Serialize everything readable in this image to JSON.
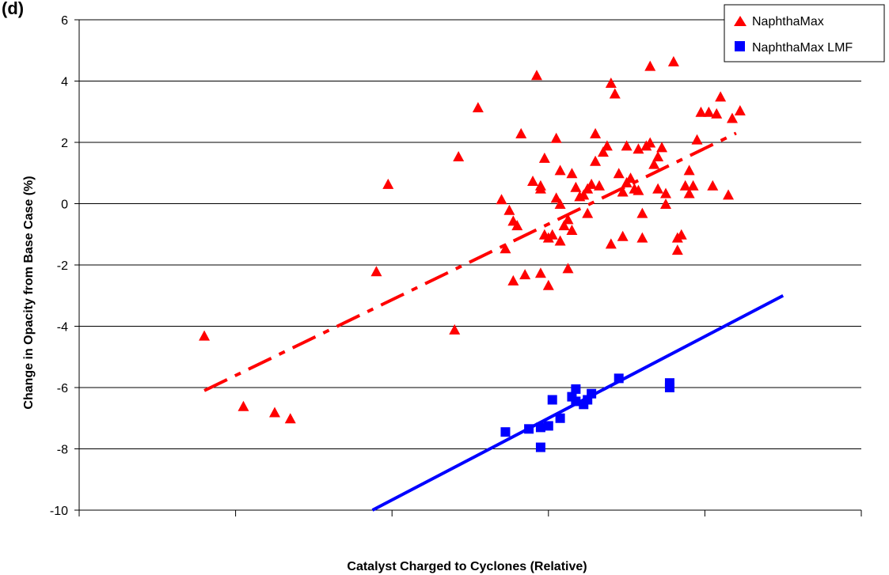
{
  "figure_label": "(d) ",
  "chart_data": {
    "type": "scatter",
    "title": "",
    "xlabel": "Catalyst Charged to Cyclones (Relative)",
    "ylabel": "Change in Opacity from Base Case (%)",
    "xlim": [
      0,
      10
    ],
    "ylim": [
      -10,
      6
    ],
    "yticks": [
      -10,
      -8,
      -6,
      -4,
      -2,
      0,
      2,
      4,
      6
    ],
    "xticks": [
      0,
      2,
      4,
      6,
      8,
      10
    ],
    "grid": "horizontal",
    "legend": "top-right",
    "colors": {
      "naphthamax": "#ff0000",
      "naphthamax_lmf": "#0000ff"
    },
    "series": [
      {
        "name": "NaphthaMax",
        "marker": "triangle",
        "color": "#ff0000",
        "points": [
          [
            1.6,
            -4.3
          ],
          [
            2.1,
            -6.6
          ],
          [
            2.5,
            -6.8
          ],
          [
            2.7,
            -7.0
          ],
          [
            3.8,
            -2.2
          ],
          [
            3.95,
            0.65
          ],
          [
            4.8,
            -4.1
          ],
          [
            4.85,
            1.55
          ],
          [
            5.1,
            3.15
          ],
          [
            5.4,
            0.15
          ],
          [
            5.45,
            -1.45
          ],
          [
            5.5,
            -0.2
          ],
          [
            5.55,
            -0.55
          ],
          [
            5.55,
            -2.5
          ],
          [
            5.6,
            -0.7
          ],
          [
            5.65,
            2.3
          ],
          [
            5.7,
            -2.3
          ],
          [
            5.8,
            0.75
          ],
          [
            5.85,
            4.2
          ],
          [
            5.9,
            0.6
          ],
          [
            5.9,
            0.5
          ],
          [
            5.9,
            -2.25
          ],
          [
            5.95,
            -1.0
          ],
          [
            5.95,
            1.5
          ],
          [
            6.0,
            -1.1
          ],
          [
            6.0,
            -2.65
          ],
          [
            6.05,
            -1.0
          ],
          [
            6.1,
            0.2
          ],
          [
            6.1,
            2.15
          ],
          [
            6.15,
            0.0
          ],
          [
            6.15,
            -1.2
          ],
          [
            6.15,
            1.1
          ],
          [
            6.2,
            -0.7
          ],
          [
            6.25,
            -0.5
          ],
          [
            6.25,
            -2.1
          ],
          [
            6.3,
            -0.85
          ],
          [
            6.3,
            1.0
          ],
          [
            6.35,
            0.55
          ],
          [
            6.4,
            0.25
          ],
          [
            6.45,
            0.3
          ],
          [
            6.5,
            -0.3
          ],
          [
            6.5,
            0.5
          ],
          [
            6.55,
            0.65
          ],
          [
            6.6,
            1.4
          ],
          [
            6.6,
            2.3
          ],
          [
            6.65,
            0.6
          ],
          [
            6.7,
            1.7
          ],
          [
            6.75,
            1.9
          ],
          [
            6.8,
            -1.3
          ],
          [
            6.8,
            3.95
          ],
          [
            6.85,
            3.6
          ],
          [
            6.9,
            1.0
          ],
          [
            6.95,
            0.4
          ],
          [
            6.95,
            -1.05
          ],
          [
            7.0,
            1.9
          ],
          [
            7.0,
            0.7
          ],
          [
            7.05,
            0.85
          ],
          [
            7.1,
            0.5
          ],
          [
            7.15,
            1.8
          ],
          [
            7.15,
            0.45
          ],
          [
            7.2,
            -0.3
          ],
          [
            7.2,
            -1.1
          ],
          [
            7.25,
            1.9
          ],
          [
            7.3,
            2.0
          ],
          [
            7.3,
            4.5
          ],
          [
            7.35,
            1.3
          ],
          [
            7.4,
            0.5
          ],
          [
            7.4,
            1.55
          ],
          [
            7.45,
            1.85
          ],
          [
            7.5,
            0.0
          ],
          [
            7.5,
            0.35
          ],
          [
            7.6,
            4.65
          ],
          [
            7.65,
            -1.1
          ],
          [
            7.65,
            -1.5
          ],
          [
            7.7,
            -1.0
          ],
          [
            7.75,
            0.6
          ],
          [
            7.8,
            1.1
          ],
          [
            7.8,
            0.35
          ],
          [
            7.85,
            0.6
          ],
          [
            7.9,
            2.1
          ],
          [
            7.95,
            3.0
          ],
          [
            8.05,
            3.0
          ],
          [
            8.1,
            0.6
          ],
          [
            8.15,
            2.95
          ],
          [
            8.2,
            3.5
          ],
          [
            8.3,
            0.3
          ],
          [
            8.35,
            2.8
          ],
          [
            8.45,
            3.05
          ]
        ],
        "trendline": {
          "style": "dash-dot",
          "points": [
            [
              1.6,
              -6.1
            ],
            [
              8.4,
              2.3
            ]
          ]
        }
      },
      {
        "name": "NaphthaMax LMF",
        "marker": "square",
        "color": "#0000ff",
        "points": [
          [
            5.45,
            -7.45
          ],
          [
            5.75,
            -7.35
          ],
          [
            5.9,
            -7.3
          ],
          [
            5.9,
            -7.95
          ],
          [
            6.0,
            -7.25
          ],
          [
            6.05,
            -6.4
          ],
          [
            6.15,
            -7.0
          ],
          [
            6.3,
            -6.3
          ],
          [
            6.35,
            -6.05
          ],
          [
            6.35,
            -6.45
          ],
          [
            6.45,
            -6.55
          ],
          [
            6.5,
            -6.4
          ],
          [
            6.55,
            -6.2
          ],
          [
            6.9,
            -5.7
          ],
          [
            7.55,
            -6.0
          ],
          [
            7.55,
            -5.85
          ]
        ],
        "trendline": {
          "style": "solid",
          "points": [
            [
              3.75,
              -10.0
            ],
            [
              9.0,
              -3.0
            ]
          ]
        }
      }
    ]
  }
}
